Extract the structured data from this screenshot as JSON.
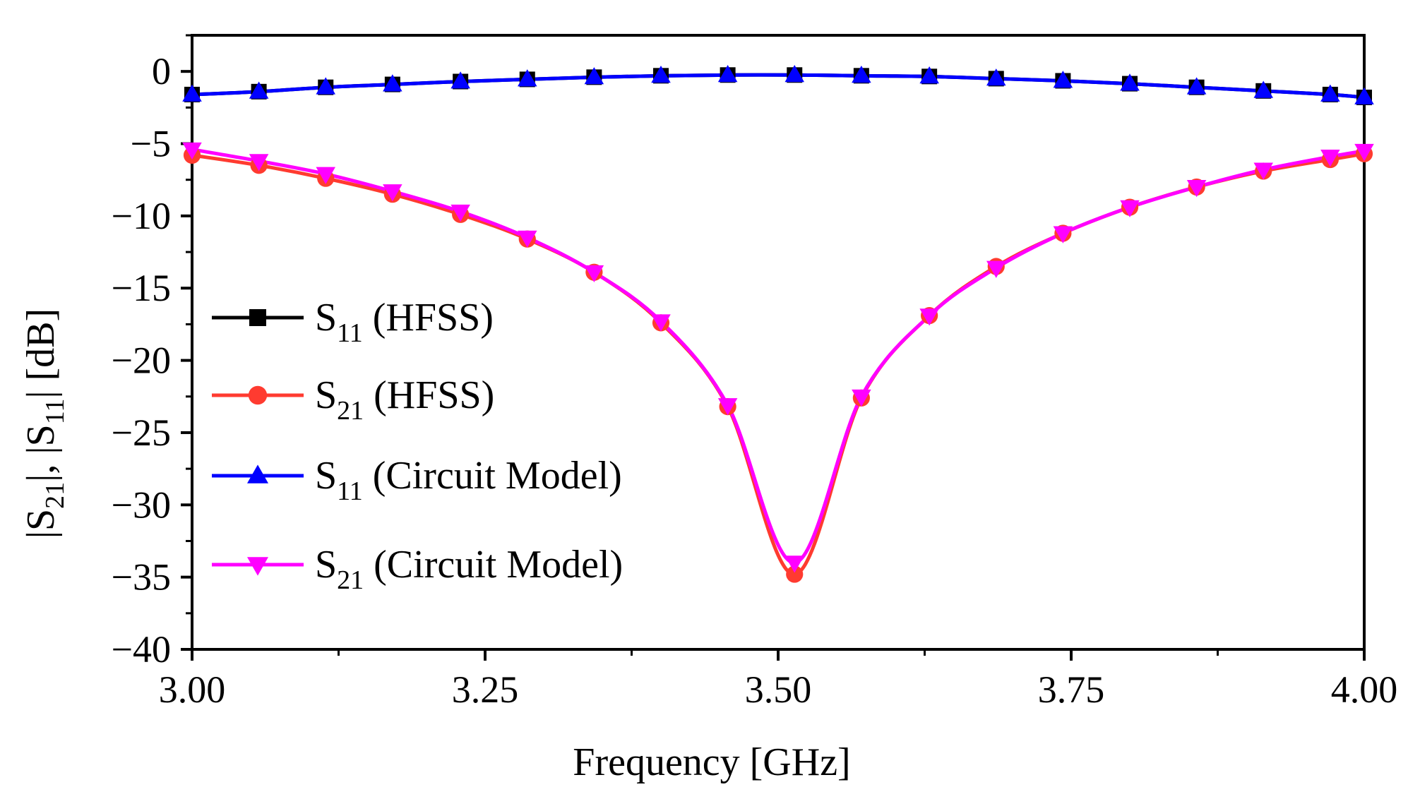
{
  "chart_data": {
    "type": "line",
    "title": "",
    "xlabel": "Frequency [GHz]",
    "ylabel": "|S21|, |S11| [dB]",
    "ylabel_parts": {
      "bar1": "|S",
      "sub1": "21",
      "mid": "|, |S",
      "sub2": "11",
      "end": "| [dB]"
    },
    "xlim": [
      3.0,
      4.0
    ],
    "ylim": [
      -40,
      2.5
    ],
    "xticks": [
      3.0,
      3.25,
      3.5,
      3.75,
      4.0
    ],
    "xtick_labels": [
      "3.00",
      "3.25",
      "3.50",
      "3.75",
      "4.00"
    ],
    "yticks": [
      0,
      -5,
      -10,
      -15,
      -20,
      -25,
      -30,
      -35,
      -40
    ],
    "ytick_labels": [
      "0",
      "−5",
      "−10",
      "−15",
      "−20",
      "−25",
      "−30",
      "−35",
      "−40"
    ],
    "grid": false,
    "legend_position": "center-left",
    "x": [
      3.0,
      3.057,
      3.114,
      3.171,
      3.229,
      3.286,
      3.343,
      3.4,
      3.457,
      3.514,
      3.571,
      3.629,
      3.686,
      3.743,
      3.8,
      3.857,
      3.914,
      3.971,
      4.0
    ],
    "series": [
      {
        "name": "S11 (HFSS)",
        "label_main": "S",
        "label_sub": "11",
        "label_rest": " (HFSS)",
        "color": "#000000",
        "marker": "square",
        "values": [
          -1.6,
          -1.4,
          -1.1,
          -0.9,
          -0.7,
          -0.55,
          -0.4,
          -0.3,
          -0.25,
          -0.25,
          -0.3,
          -0.35,
          -0.5,
          -0.65,
          -0.85,
          -1.1,
          -1.35,
          -1.6,
          -1.8
        ]
      },
      {
        "name": "S21 (HFSS)",
        "label_main": "S",
        "label_sub": "21",
        "label_rest": " (HFSS)",
        "color": "#ff3b30",
        "marker": "circle",
        "values": [
          -5.8,
          -6.5,
          -7.4,
          -8.5,
          -9.9,
          -11.6,
          -13.9,
          -17.4,
          -23.2,
          -34.8,
          -22.6,
          -16.9,
          -13.5,
          -11.2,
          -9.4,
          -8.0,
          -6.9,
          -6.1,
          -5.7
        ]
      },
      {
        "name": "S11 (Circuit Model)",
        "label_main": "S",
        "label_sub": "11",
        "label_rest": " (Circuit Model)",
        "color": "#0000ff",
        "marker": "triangle-up",
        "values": [
          -1.6,
          -1.4,
          -1.1,
          -0.9,
          -0.7,
          -0.55,
          -0.4,
          -0.3,
          -0.25,
          -0.25,
          -0.3,
          -0.35,
          -0.5,
          -0.65,
          -0.85,
          -1.1,
          -1.35,
          -1.6,
          -1.8
        ]
      },
      {
        "name": "S21 (Circuit Model)",
        "label_main": "S",
        "label_sub": "21",
        "label_rest": " (Circuit Model)",
        "color": "#ff00ff",
        "marker": "triangle-down",
        "values": [
          -5.4,
          -6.2,
          -7.1,
          -8.3,
          -9.7,
          -11.5,
          -13.9,
          -17.3,
          -23.1,
          -34.0,
          -22.5,
          -16.9,
          -13.6,
          -11.2,
          -9.4,
          -8.0,
          -6.8,
          -5.9,
          -5.5
        ]
      }
    ]
  }
}
